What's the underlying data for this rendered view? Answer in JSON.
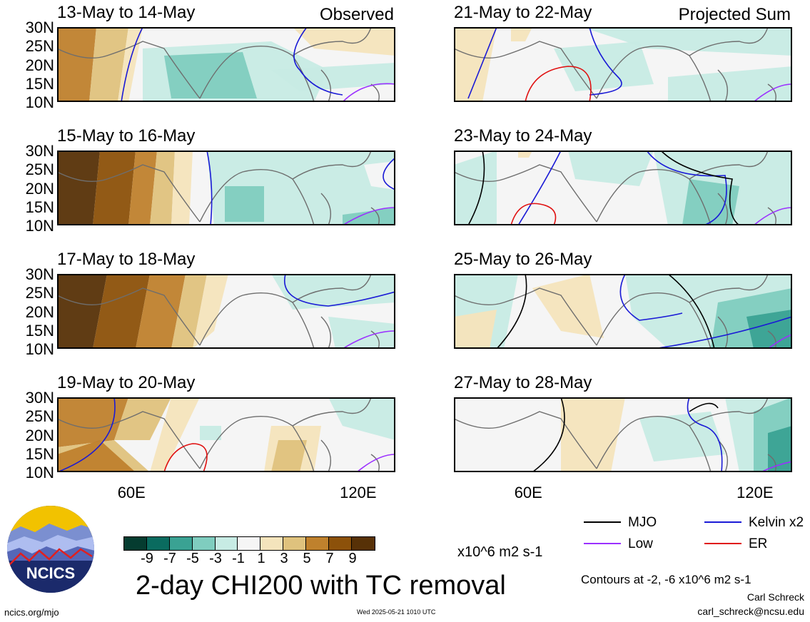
{
  "panels": [
    {
      "title": "13-May to 14-May",
      "tag": "Observed"
    },
    {
      "title": "15-May to 16-May",
      "tag": ""
    },
    {
      "title": "17-May to 18-May",
      "tag": ""
    },
    {
      "title": "19-May to 20-May",
      "tag": ""
    },
    {
      "title": "21-May to 22-May",
      "tag": "Projected Sum"
    },
    {
      "title": "23-May to 24-May",
      "tag": ""
    },
    {
      "title": "25-May to 26-May",
      "tag": ""
    },
    {
      "title": "27-May to 28-May",
      "tag": ""
    }
  ],
  "lat_labels": [
    "30N",
    "25N",
    "20N",
    "15N",
    "10N"
  ],
  "lon_labels": [
    "60E",
    "120E"
  ],
  "colorbar": {
    "colors": [
      "#053c30",
      "#0a6b5f",
      "#3aa293",
      "#7fcdbf",
      "#c7ebe4",
      "#f5f5f5",
      "#f4e4bc",
      "#dfc27d",
      "#bf812d",
      "#8c510a",
      "#573107"
    ],
    "ticks": [
      "-9",
      "-7",
      "-5",
      "-3",
      "-1",
      "1",
      "3",
      "5",
      "7",
      "9"
    ],
    "units": "x10^6 m2 s-1"
  },
  "title": "2-day CHI200 with TC removal",
  "legend": [
    {
      "label": "MJO",
      "color": "#000000"
    },
    {
      "label": "Kelvin x2",
      "color": "#1a1ad6"
    },
    {
      "label": "Low",
      "color": "#9b30ff"
    },
    {
      "label": "ER",
      "color": "#e01010"
    }
  ],
  "contour_note": "Contours at -2, -6 x10^6 m2 s-1",
  "author": "Carl Schreck",
  "email": "carl_schreck@ncsu.edu",
  "url": "ncics.org/mjo",
  "timestamp": "Wed 2025-05-21 1010 UTC",
  "logo_text": "NCICS",
  "chart_data": {
    "type": "heatmap",
    "variable": "2-day CHI200 with TC removal",
    "units": "x10^6 m2 s-1",
    "lat_range": [
      10,
      30
    ],
    "lon_ticks": [
      "60E",
      "120E"
    ],
    "contour_levels": [
      -2,
      -6
    ],
    "levels": [
      -9,
      -7,
      -5,
      -3,
      -1,
      1,
      3,
      5,
      7,
      9
    ]
  }
}
